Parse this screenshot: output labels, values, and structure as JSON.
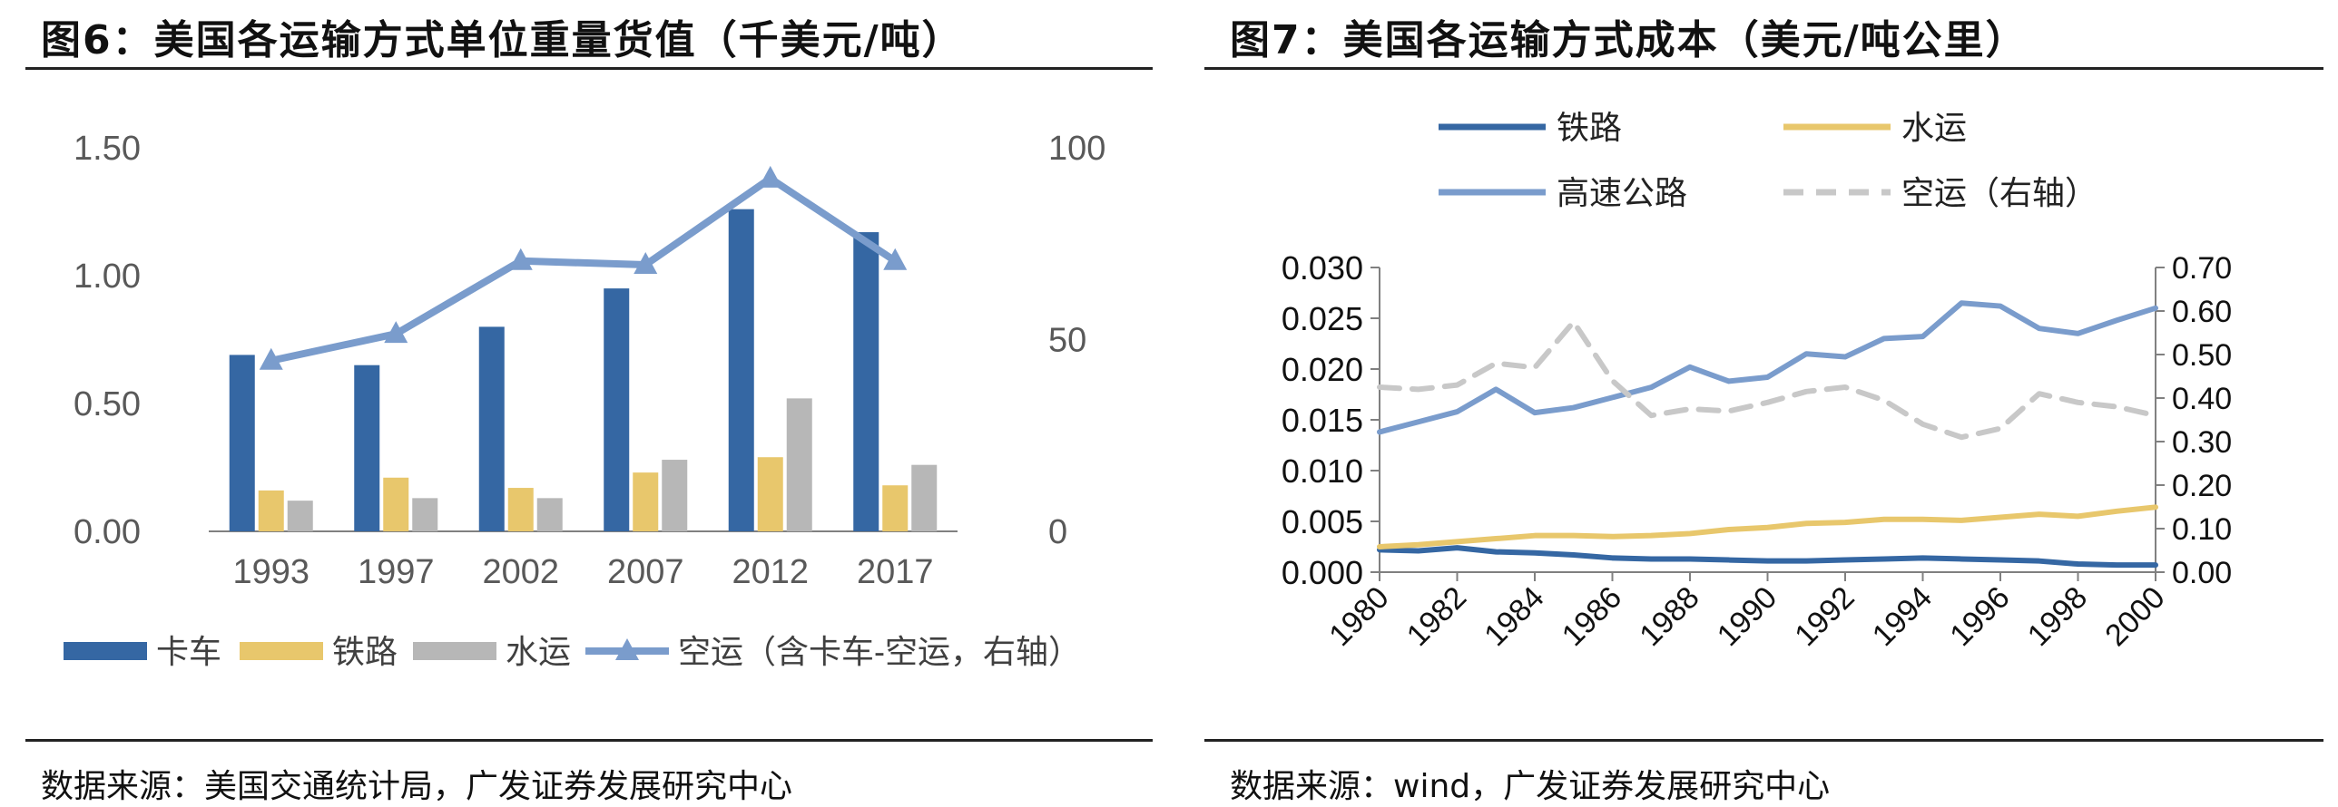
{
  "colors": {
    "blue": "#3567a3",
    "yellow": "#e8c76c",
    "gray": "#b7b7b7",
    "lightblue": "#7a9ccc",
    "dash": "#c8c8c8",
    "axis": "#808080"
  },
  "left": {
    "title": "图6：美国各运输方式单位重量货值（千美元/吨）",
    "source": "数据来源：美国交通统计局，广发证券发展研究中心"
  },
  "right": {
    "title": "图7：美国各运输方式成本（美元/吨公里）",
    "source": "数据来源：wind，广发证券发展研究中心"
  },
  "chart_data": [
    {
      "type": "bar",
      "title": "美国各运输方式单位重量货值（千美元/吨）",
      "categories": [
        "1993",
        "1997",
        "2002",
        "2007",
        "2012",
        "2017"
      ],
      "ylim": [
        0,
        1.5
      ],
      "yticks": [
        "0.00",
        "0.50",
        "1.00",
        "1.50"
      ],
      "y2lim": [
        0,
        100
      ],
      "y2ticks": [
        "0",
        "50",
        "100"
      ],
      "series": [
        {
          "name": "卡车",
          "values": [
            0.69,
            0.65,
            0.8,
            0.95,
            1.26,
            1.17
          ]
        },
        {
          "name": "铁路",
          "values": [
            0.16,
            0.21,
            0.17,
            0.23,
            0.29,
            0.18
          ]
        },
        {
          "name": "水运",
          "values": [
            0.12,
            0.13,
            0.13,
            0.28,
            0.52,
            0.26
          ]
        },
        {
          "name": "空运（含卡车-空运，右轴）",
          "type": "line",
          "axis": "right",
          "values": [
            44.5,
            51.5,
            70.5,
            69.5,
            92.0,
            70.5
          ]
        }
      ]
    },
    {
      "type": "line",
      "title": "美国各运输方式成本（美元/吨公里）",
      "x": [
        "1980",
        "1981",
        "1982",
        "1983",
        "1984",
        "1985",
        "1986",
        "1987",
        "1988",
        "1989",
        "1990",
        "1991",
        "1992",
        "1993",
        "1994",
        "1995",
        "1996",
        "1997",
        "1998",
        "1999",
        "2000"
      ],
      "xticks": [
        "1980",
        "1982",
        "1984",
        "1986",
        "1988",
        "1990",
        "1992",
        "1994",
        "1996",
        "1998",
        "2000"
      ],
      "ylim": [
        0,
        0.03
      ],
      "yticks": [
        "0.000",
        "0.005",
        "0.010",
        "0.015",
        "0.020",
        "0.025",
        "0.030"
      ],
      "y2lim": [
        0,
        0.7
      ],
      "y2ticks": [
        "0.00",
        "0.10",
        "0.20",
        "0.30",
        "0.40",
        "0.50",
        "0.60",
        "0.70"
      ],
      "series": [
        {
          "name": "铁路",
          "values": [
            0.0022,
            0.0021,
            0.0024,
            0.002,
            0.0019,
            0.0017,
            0.0014,
            0.0013,
            0.0013,
            0.0012,
            0.0011,
            0.0011,
            0.0012,
            0.0013,
            0.0014,
            0.0013,
            0.0012,
            0.0011,
            0.0008,
            0.0007,
            0.0007
          ]
        },
        {
          "name": "水运",
          "values": [
            0.0025,
            0.0027,
            0.003,
            0.0033,
            0.0036,
            0.0036,
            0.0035,
            0.0036,
            0.0038,
            0.0042,
            0.0044,
            0.0048,
            0.0049,
            0.0052,
            0.0052,
            0.0051,
            0.0054,
            0.0057,
            0.0055,
            0.006,
            0.0064
          ]
        },
        {
          "name": "高速公路",
          "values": [
            0.0138,
            0.0148,
            0.0158,
            0.018,
            0.0157,
            0.0162,
            0.0172,
            0.0182,
            0.0202,
            0.0188,
            0.0192,
            0.0215,
            0.0212,
            0.023,
            0.0232,
            0.0265,
            0.0262,
            0.024,
            0.0235,
            0.0248,
            0.026
          ]
        },
        {
          "name": "空运（右轴）",
          "axis": "right",
          "dashed": true,
          "values": [
            0.425,
            0.42,
            0.43,
            0.48,
            0.47,
            0.575,
            0.44,
            0.36,
            0.375,
            0.37,
            0.39,
            0.415,
            0.425,
            0.395,
            0.34,
            0.31,
            0.33,
            0.41,
            0.39,
            0.38,
            0.36
          ]
        }
      ]
    }
  ]
}
